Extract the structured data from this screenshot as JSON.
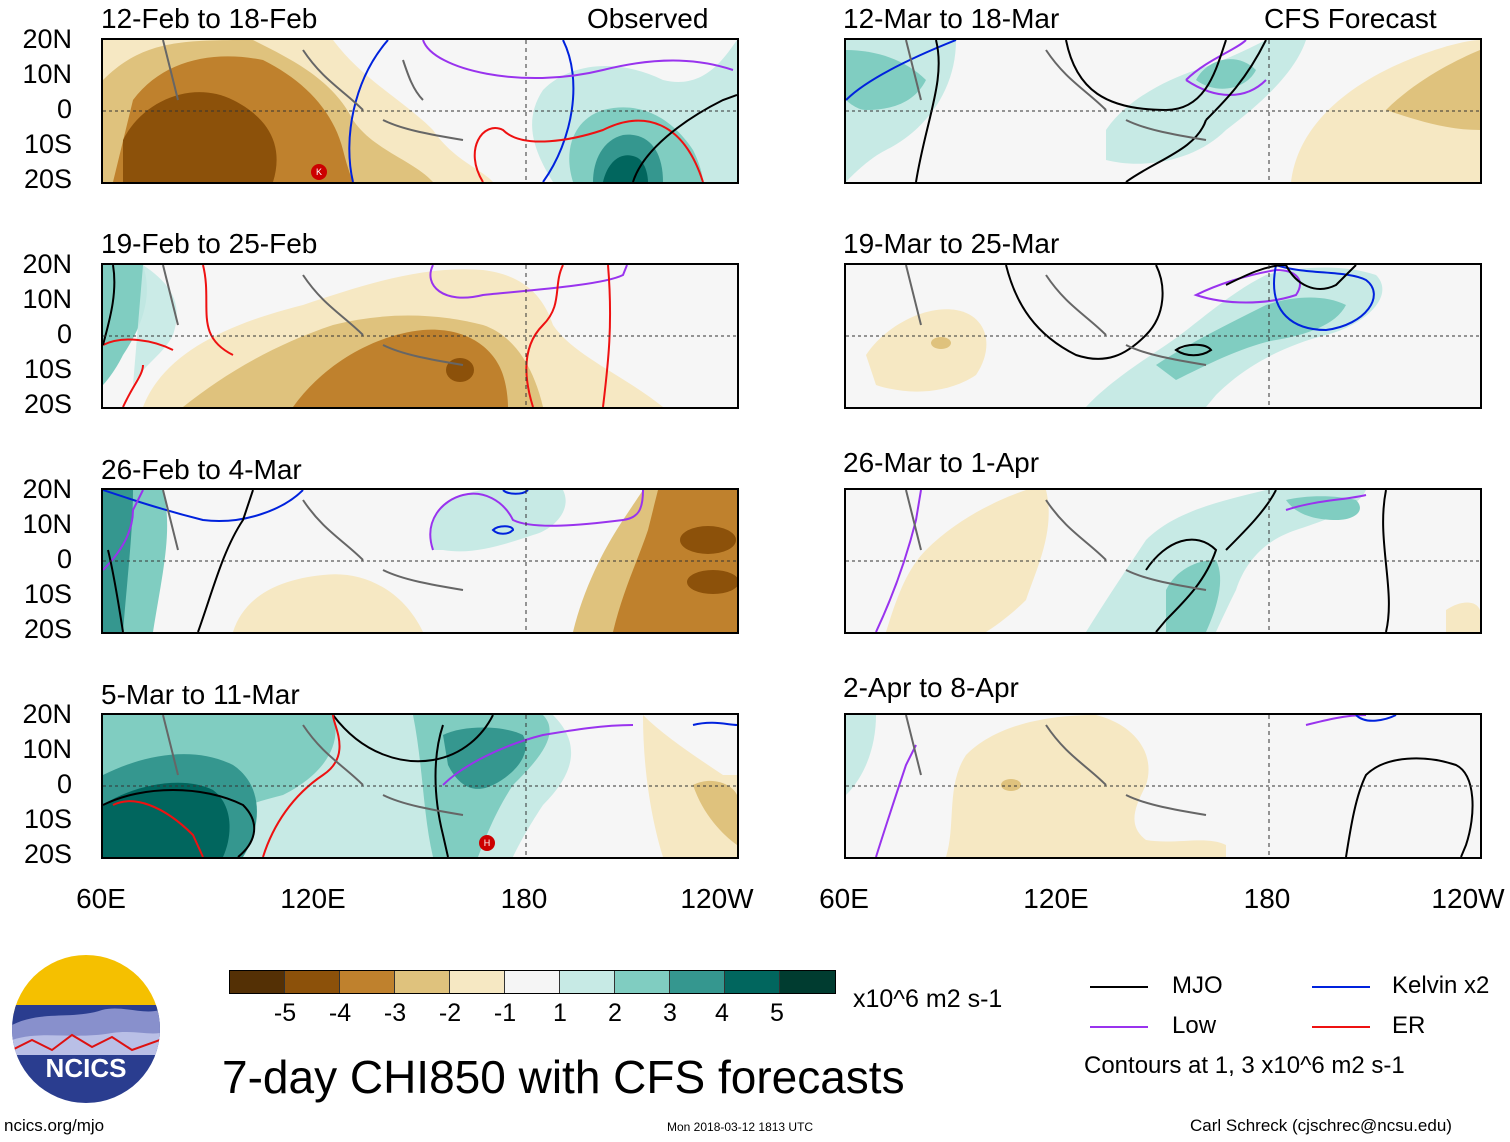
{
  "header": {
    "observed_label": "Observed",
    "forecast_label": "CFS Forecast"
  },
  "panels": [
    {
      "title": "12-Feb to 18-Feb",
      "column": "Observed"
    },
    {
      "title": "19-Feb to 25-Feb",
      "column": "Observed"
    },
    {
      "title": "26-Feb to 4-Mar",
      "column": "Observed"
    },
    {
      "title": "5-Mar to 11-Mar",
      "column": "Observed"
    },
    {
      "title": "12-Mar to 18-Mar",
      "column": "CFS Forecast"
    },
    {
      "title": "19-Mar to 25-Mar",
      "column": "CFS Forecast"
    },
    {
      "title": "26-Mar to 1-Apr",
      "column": "CFS Forecast"
    },
    {
      "title": "2-Apr to 8-Apr",
      "column": "CFS Forecast"
    }
  ],
  "axes": {
    "lat_labels": [
      "20N",
      "10N",
      "0",
      "10S",
      "20S"
    ],
    "lon_labels": [
      "60E",
      "120E",
      "180",
      "120W"
    ]
  },
  "colorbar": {
    "colors": [
      "#543005",
      "#8c510a",
      "#bf812d",
      "#dfc27d",
      "#f6e8c3",
      "#f5f5f5",
      "#c7eae5",
      "#80cdc1",
      "#35978f",
      "#01665e",
      "#003c30"
    ],
    "ticks": [
      "-5",
      "-4",
      "-3",
      "-2",
      "-1",
      "1",
      "2",
      "3",
      "4",
      "5"
    ],
    "units": "x10^6 m2 s-1"
  },
  "title": "7-day CHI850 with CFS forecasts",
  "legend": {
    "items": [
      {
        "label": "MJO",
        "color": "#000000"
      },
      {
        "label": "Kelvin x2",
        "color": "#0022dd"
      },
      {
        "label": "Low",
        "color": "#9933ee"
      },
      {
        "label": "ER",
        "color": "#ee1111"
      }
    ],
    "note": "Contours at 1, 3 x10^6 m2 s-1"
  },
  "logo": {
    "text": "NCICS"
  },
  "footer": {
    "url": "ncics.org/mjo",
    "timestamp": "Mon 2018-03-12 1813 UTC",
    "author": "Carl Schreck (cjschrec@ncsu.edu)"
  },
  "storm_markers": [
    "K",
    "H"
  ]
}
